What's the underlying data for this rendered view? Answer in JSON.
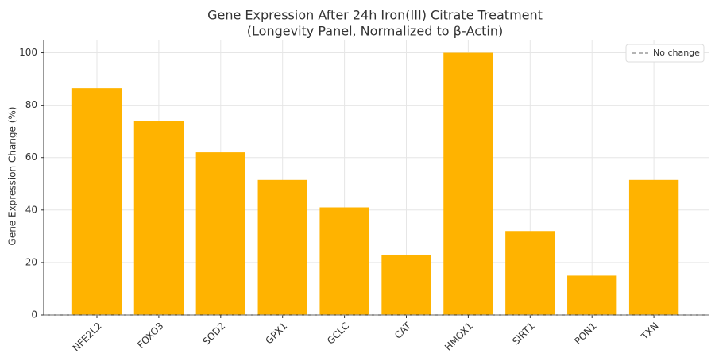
{
  "chart_data": {
    "type": "bar",
    "title": "Gene Expression After 24h Iron(III) Citrate Treatment",
    "subtitle": "(Longevity Panel, Normalized to β-Actin)",
    "y_label": "Gene Expression Change (%)",
    "categories": [
      "NFE2L2",
      "FOXO3",
      "SOD2",
      "GPX1",
      "GCLC",
      "CAT",
      "HMOX1",
      "SIRT1",
      "PON1",
      "TXN"
    ],
    "values": [
      86.5,
      74,
      62,
      51.5,
      41,
      23,
      100,
      32,
      15,
      51.5
    ],
    "color": "#ffb300",
    "ylim": [
      0,
      105
    ],
    "yticks": [
      0,
      20,
      40,
      60,
      80,
      100
    ],
    "grid": true,
    "reference_line": {
      "name": "No change",
      "value": 0,
      "color": "#888888"
    },
    "legend": "upper right"
  }
}
